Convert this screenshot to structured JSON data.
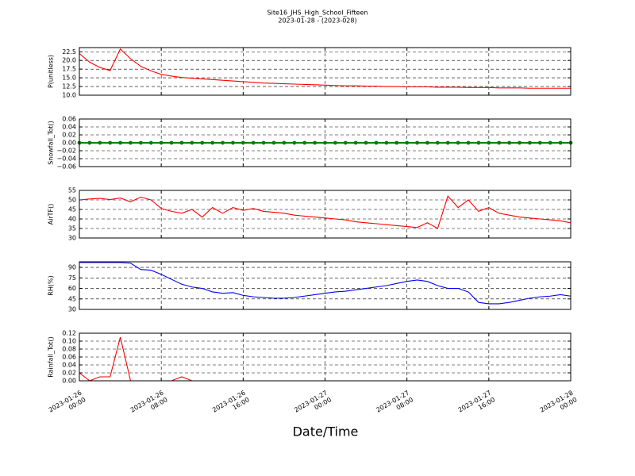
{
  "chart_data": {
    "type": "line",
    "title": "Site16_JHS_High_School_Fifteen",
    "subtitle": "2023-01-28 - (2023-028)",
    "xlabel": "Date/Time",
    "grid": true,
    "xlim": [
      "2023-01-26 00:00",
      "2023-01-28 00:00"
    ],
    "xticks": [
      "2023-01-26 00:00",
      "2023-01-26 08:00",
      "2023-01-26 16:00",
      "2023-01-27 00:00",
      "2023-01-27 08:00",
      "2023-01-27 16:00",
      "2023-01-28 00:00"
    ],
    "x": [
      "2023-01-26 00:00",
      "2023-01-26 01:00",
      "2023-01-26 02:00",
      "2023-01-26 03:00",
      "2023-01-26 04:00",
      "2023-01-26 05:00",
      "2023-01-26 06:00",
      "2023-01-26 07:00",
      "2023-01-26 08:00",
      "2023-01-26 09:00",
      "2023-01-26 10:00",
      "2023-01-26 11:00",
      "2023-01-26 12:00",
      "2023-01-26 13:00",
      "2023-01-26 14:00",
      "2023-01-26 15:00",
      "2023-01-26 16:00",
      "2023-01-26 17:00",
      "2023-01-26 18:00",
      "2023-01-26 19:00",
      "2023-01-26 20:00",
      "2023-01-26 21:00",
      "2023-01-26 22:00",
      "2023-01-26 23:00",
      "2023-01-27 00:00",
      "2023-01-27 01:00",
      "2023-01-27 02:00",
      "2023-01-27 03:00",
      "2023-01-27 04:00",
      "2023-01-27 05:00",
      "2023-01-27 06:00",
      "2023-01-27 07:00",
      "2023-01-27 08:00",
      "2023-01-27 09:00",
      "2023-01-27 10:00",
      "2023-01-27 11:00",
      "2023-01-27 12:00",
      "2023-01-27 13:00",
      "2023-01-27 14:00",
      "2023-01-27 15:00",
      "2023-01-27 16:00",
      "2023-01-27 17:00",
      "2023-01-27 18:00",
      "2023-01-27 19:00",
      "2023-01-27 20:00",
      "2023-01-27 21:00",
      "2023-01-27 22:00",
      "2023-01-27 23:00",
      "2023-01-28 00:00"
    ],
    "panels": [
      {
        "ylabel": "P(unitless)",
        "ylim": [
          10,
          23.7
        ],
        "yticks": [
          {
            "value": 10,
            "label": "10.0"
          },
          12.5,
          {
            "value": 15,
            "label": "15.0"
          },
          17.5,
          {
            "value": 20,
            "label": "20.0"
          },
          22.5
        ],
        "series": [
          {
            "color": "#ff0000",
            "marker": false,
            "values": [
              22.0,
              19.5,
              18.0,
              17.1,
              23.3,
              20.5,
              18.3,
              17.0,
              16.0,
              15.5,
              15.1,
              14.9,
              14.7,
              14.5,
              14.3,
              14.1,
              13.9,
              13.7,
              13.5,
              13.4,
              13.3,
              13.2,
              13.1,
              13.0,
              12.9,
              12.8,
              12.7,
              12.7,
              12.6,
              12.6,
              12.5,
              12.5,
              12.4,
              12.4,
              12.4,
              12.3,
              12.3,
              12.3,
              12.2,
              12.2,
              12.2,
              12.1,
              12.1,
              12.1,
              12.0,
              12.0,
              12.0,
              12.0,
              12.0
            ]
          }
        ]
      },
      {
        "ylabel": "Snowfall_Tot()",
        "ylim": [
          -0.06,
          0.06
        ],
        "yticks": [
          {
            "value": -0.06,
            "label": "−0.06"
          },
          {
            "value": -0.04,
            "label": "−0.04"
          },
          {
            "value": -0.02,
            "label": "−0.02"
          },
          {
            "value": 0,
            "label": "0.00"
          },
          0.02,
          0.04,
          0.06
        ],
        "series": [
          {
            "color": "#008000",
            "marker": true,
            "values": [
              0,
              0,
              0,
              0,
              0,
              0,
              0,
              0,
              0,
              0,
              0,
              0,
              0,
              0,
              0,
              0,
              0,
              0,
              0,
              0,
              0,
              0,
              0,
              0,
              0,
              0,
              0,
              0,
              0,
              0,
              0,
              0,
              0,
              0,
              0,
              0,
              0,
              0,
              0,
              0,
              0,
              0,
              0,
              0,
              0,
              0,
              0,
              0,
              0
            ]
          }
        ]
      },
      {
        "ylabel": "AirTF()",
        "ylim": [
          30,
          55
        ],
        "yticks": [
          30,
          35,
          40,
          45,
          50,
          55
        ],
        "series": [
          {
            "color": "#ff0000",
            "marker": false,
            "values": [
              50,
              50.5,
              50.8,
              50.2,
              51,
              49,
              51.5,
              50,
              45.5,
              44,
              43,
              45,
              41,
              46,
              43,
              46,
              44.5,
              45.5,
              44,
              43.5,
              43,
              42,
              41.5,
              41,
              40.5,
              40,
              39.5,
              38.5,
              38,
              37.5,
              37,
              36.5,
              36,
              35.5,
              38,
              35,
              52,
              46,
              50,
              44,
              46,
              43,
              42,
              41,
              40.5,
              40,
              39.5,
              39,
              38
            ]
          }
        ]
      },
      {
        "ylabel": "RH(%)",
        "ylim": [
          30,
          98
        ],
        "yticks": [
          30,
          45,
          60,
          75,
          90
        ],
        "series": [
          {
            "color": "#0000ff",
            "marker": false,
            "values": [
              97,
              97,
              97,
              97,
              97,
              96,
              87,
              86,
              80,
              73,
              66,
              62,
              60,
              55,
              53,
              54,
              50,
              48,
              47,
              46,
              46,
              47,
              49,
              51,
              53,
              55,
              56,
              58,
              60,
              62,
              64,
              67,
              70,
              72,
              70,
              64,
              60,
              60,
              55,
              40,
              38,
              38,
              40,
              43,
              46,
              48,
              49,
              51,
              49
            ]
          }
        ]
      },
      {
        "ylabel": "Rainfall_Tot()",
        "ylim": [
          0,
          0.12
        ],
        "yticks": [
          {
            "value": 0,
            "label": "0.00"
          },
          0.02,
          0.04,
          0.06,
          0.08,
          {
            "value": 0.1,
            "label": "0.10"
          },
          0.12
        ],
        "series": [
          {
            "color": "#ff0000",
            "marker": false,
            "values": [
              0.02,
              0,
              0.01,
              0.01,
              0.11,
              0,
              0,
              0,
              0,
              0,
              0.01,
              0,
              0,
              0,
              0,
              0,
              0,
              0,
              0,
              0,
              0,
              0,
              0,
              0,
              0,
              0,
              0,
              0,
              0,
              0,
              0,
              0,
              0,
              0,
              0,
              0,
              0,
              0,
              0,
              0,
              0,
              0,
              0,
              0,
              0,
              0,
              0,
              0,
              0
            ]
          }
        ]
      }
    ]
  }
}
